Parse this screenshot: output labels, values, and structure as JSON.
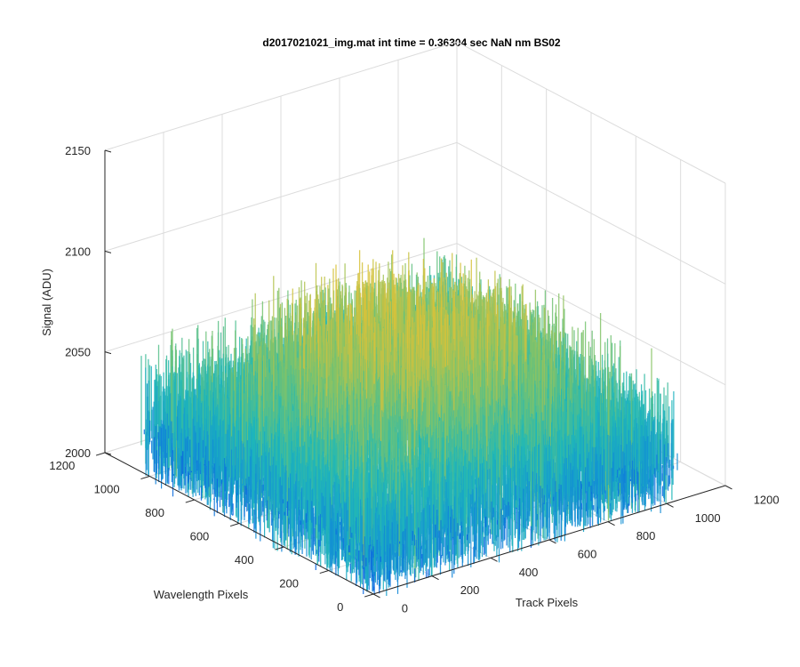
{
  "chart_data": {
    "type": "surface",
    "title": "d2017021021_img.mat int time = 0.36304 sec  NaN nm BS02",
    "xlabel": "Track Pixels",
    "ylabel": "Wavelength Pixels",
    "zlabel": "Signal (ADU)",
    "xlim": [
      0,
      1200
    ],
    "ylim": [
      0,
      1200
    ],
    "zlim": [
      2000,
      2150
    ],
    "x_ticks": [
      "0",
      "200",
      "400",
      "600",
      "800",
      "1000",
      "1200"
    ],
    "y_ticks": [
      "0",
      "200",
      "400",
      "600",
      "800",
      "1000",
      "1200"
    ],
    "z_ticks": [
      "2000",
      "2050",
      "2100",
      "2150"
    ],
    "grid": true,
    "colormap": "parula",
    "surface_extent": {
      "x": [
        0,
        1024
      ],
      "y": [
        0,
        1024
      ]
    },
    "signal_summary": {
      "edge_mean": 2035,
      "center_mean": 2070,
      "noise_range": 30
    },
    "colors": {
      "low": "#0a6fe0",
      "mid": "#1fb8b8",
      "high": "#d8c23a",
      "axis": "#262626",
      "grid": "#dcdcdc"
    }
  }
}
